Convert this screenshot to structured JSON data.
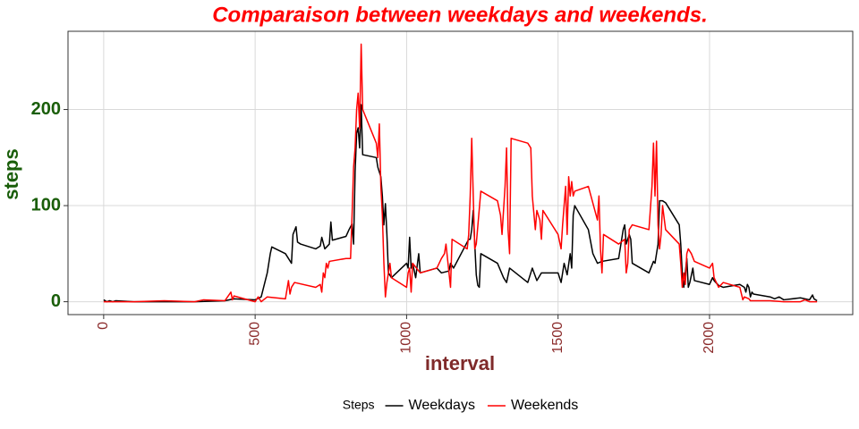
{
  "chart_data": {
    "type": "line",
    "title": "Comparaison between weekdays and weekends.",
    "x_label": "interval",
    "y_label": "steps",
    "legend_title": "Steps",
    "legend_position": "bottom",
    "grid": true,
    "xlim": [
      -117.75,
      2472.75
    ],
    "ylim": [
      -13.4,
      281.4
    ],
    "xticks": [
      0,
      500,
      1000,
      1500,
      2000
    ],
    "yticks": [
      0,
      100,
      200
    ],
    "series": [
      {
        "name": "Weekdays",
        "color": "#000000",
        "x": [
          0,
          10,
          20,
          30,
          40,
          100,
          200,
          300,
          400,
          430,
          500,
          520,
          540,
          550,
          555,
          600,
          620,
          625,
          635,
          640,
          650,
          700,
          715,
          720,
          730,
          745,
          750,
          755,
          800,
          810,
          820,
          825,
          830,
          835,
          840,
          845,
          850,
          855,
          900,
          905,
          910,
          915,
          920,
          925,
          930,
          935,
          940,
          950,
          1000,
          1005,
          1010,
          1015,
          1020,
          1030,
          1040,
          1045,
          1100,
          1115,
          1140,
          1145,
          1155,
          1200,
          1205,
          1210,
          1215,
          1220,
          1225,
          1230,
          1235,
          1240,
          1245,
          1300,
          1320,
          1330,
          1340,
          1400,
          1415,
          1430,
          1445,
          1500,
          1510,
          1520,
          1530,
          1540,
          1545,
          1550,
          1555,
          1600,
          1615,
          1630,
          1645,
          1700,
          1715,
          1720,
          1725,
          1735,
          1740,
          1745,
          1800,
          1815,
          1820,
          1830,
          1835,
          1845,
          1855,
          1900,
          1905,
          1910,
          1915,
          1925,
          1930,
          1935,
          1945,
          1950,
          2000,
          2010,
          2015,
          2030,
          2045,
          2100,
          2115,
          2120,
          2125,
          2130,
          2135,
          2140,
          2145,
          2200,
          2215,
          2230,
          2245,
          2300,
          2315,
          2330,
          2340,
          2345,
          2355
        ],
        "values": [
          2,
          0,
          1,
          0,
          1,
          0,
          0,
          0,
          1,
          3,
          2,
          5,
          30,
          50,
          57,
          50,
          40,
          70,
          78,
          62,
          60,
          55,
          58,
          67,
          55,
          60,
          83,
          64,
          68,
          75,
          81,
          60,
          135,
          175,
          181,
          160,
          205,
          153,
          150,
          140,
          135,
          130,
          110,
          80,
          102,
          70,
          30,
          25,
          40,
          35,
          67,
          35,
          40,
          25,
          50,
          30,
          35,
          30,
          32,
          40,
          35,
          62,
          65,
          65,
          75,
          95,
          60,
          28,
          17,
          15,
          50,
          40,
          25,
          20,
          35,
          20,
          35,
          22,
          30,
          30,
          20,
          40,
          28,
          50,
          35,
          90,
          100,
          75,
          50,
          40,
          42,
          45,
          75,
          80,
          60,
          70,
          65,
          40,
          30,
          42,
          40,
          60,
          105,
          105,
          103,
          80,
          60,
          30,
          15,
          45,
          15,
          20,
          35,
          22,
          18,
          25,
          22,
          17,
          15,
          18,
          15,
          10,
          18,
          15,
          5,
          10,
          8,
          5,
          3,
          5,
          2,
          4,
          3,
          2,
          7,
          3,
          1
        ]
      },
      {
        "name": "Weekends",
        "color": "#ff0000",
        "x": [
          0,
          100,
          200,
          300,
          330,
          400,
          420,
          425,
          430,
          500,
          510,
          520,
          540,
          600,
          610,
          615,
          620,
          630,
          700,
          715,
          720,
          725,
          730,
          735,
          740,
          745,
          800,
          815,
          820,
          825,
          830,
          835,
          840,
          845,
          850,
          855,
          900,
          905,
          910,
          915,
          920,
          925,
          930,
          935,
          945,
          950,
          1000,
          1005,
          1010,
          1015,
          1020,
          1045,
          1100,
          1115,
          1125,
          1130,
          1140,
          1145,
          1150,
          1200,
          1205,
          1210,
          1215,
          1220,
          1225,
          1230,
          1245,
          1300,
          1310,
          1315,
          1325,
          1330,
          1335,
          1340,
          1345,
          1400,
          1410,
          1415,
          1425,
          1430,
          1440,
          1445,
          1450,
          1500,
          1510,
          1515,
          1520,
          1525,
          1530,
          1535,
          1540,
          1545,
          1550,
          1555,
          1600,
          1630,
          1635,
          1640,
          1645,
          1650,
          1700,
          1720,
          1725,
          1730,
          1735,
          1745,
          1800,
          1810,
          1815,
          1820,
          1825,
          1830,
          1835,
          1840,
          1845,
          1855,
          1900,
          1905,
          1910,
          1915,
          1920,
          1925,
          1930,
          1940,
          1950,
          2000,
          2010,
          2015,
          2030,
          2045,
          2100,
          2110,
          2115,
          2130,
          2135,
          2200,
          2245,
          2300,
          2315,
          2330,
          2355
        ],
        "values": [
          0,
          0,
          1,
          0,
          2,
          1,
          10,
          2,
          6,
          0,
          5,
          0,
          5,
          3,
          22,
          8,
          15,
          20,
          15,
          18,
          10,
          30,
          25,
          40,
          35,
          42,
          45,
          45,
          90,
          140,
          160,
          200,
          217,
          180,
          268,
          200,
          165,
          150,
          185,
          120,
          90,
          40,
          5,
          20,
          40,
          25,
          15,
          30,
          35,
          10,
          40,
          30,
          35,
          45,
          50,
          60,
          30,
          15,
          65,
          55,
          70,
          110,
          170,
          110,
          55,
          60,
          115,
          105,
          90,
          70,
          120,
          160,
          75,
          50,
          170,
          165,
          160,
          110,
          75,
          95,
          85,
          65,
          95,
          70,
          55,
          80,
          100,
          120,
          70,
          130,
          110,
          125,
          110,
          115,
          120,
          85,
          110,
          55,
          30,
          70,
          60,
          65,
          30,
          40,
          75,
          80,
          75,
          120,
          165,
          110,
          167,
          80,
          55,
          70,
          100,
          75,
          60,
          40,
          15,
          30,
          18,
          50,
          55,
          50,
          42,
          35,
          40,
          25,
          15,
          20,
          15,
          2,
          5,
          3,
          1,
          1,
          0,
          0,
          2,
          0,
          0
        ]
      }
    ]
  }
}
